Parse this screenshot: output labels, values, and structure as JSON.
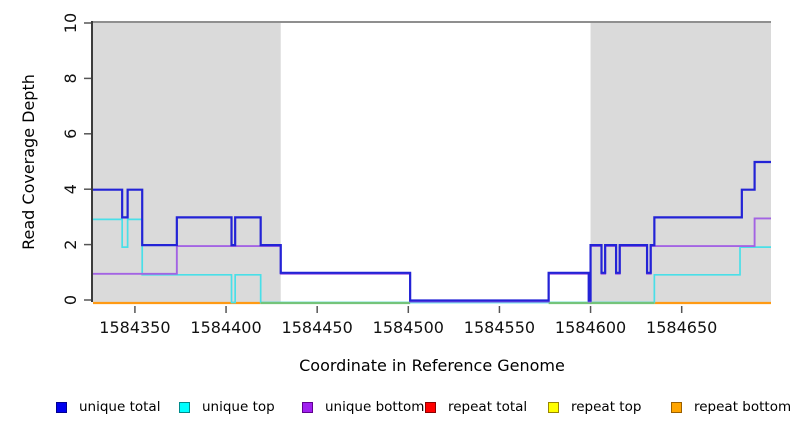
{
  "chart_data": {
    "type": "step-line",
    "title": "",
    "xlabel": "Coordinate in Reference Genome",
    "ylabel": "Read Coverage Depth",
    "xlim": [
      1584327,
      1584699
    ],
    "ylim": [
      0,
      10
    ],
    "x_ticks": [
      1584350,
      1584400,
      1584450,
      1584500,
      1584550,
      1584600,
      1584650
    ],
    "y_ticks": [
      0,
      2,
      4,
      6,
      8,
      10
    ],
    "grid": false,
    "legend_position": "bottom",
    "background_color": "#ffffff",
    "region_color": "#dadada",
    "shaded_regions": [
      {
        "from": 1584327,
        "to": 1584430
      },
      {
        "from": 1584600,
        "to": 1584699
      }
    ],
    "depth_cap_line": {
      "value": 10,
      "color": "#8f8f8f"
    },
    "series": [
      {
        "name": "unique total",
        "color": "#2323d6",
        "steps": [
          [
            1584327,
            4
          ],
          [
            1584343,
            3
          ],
          [
            1584346,
            4
          ],
          [
            1584354,
            2
          ],
          [
            1584373,
            3
          ],
          [
            1584403,
            2
          ],
          [
            1584405,
            3
          ],
          [
            1584419,
            2
          ],
          [
            1584430,
            1
          ],
          [
            1584501,
            0
          ],
          [
            1584577,
            1
          ],
          [
            1584599,
            0
          ],
          [
            1584600,
            2
          ],
          [
            1584606,
            1
          ],
          [
            1584608,
            2
          ],
          [
            1584614,
            1
          ],
          [
            1584616,
            2
          ],
          [
            1584631,
            1
          ],
          [
            1584633,
            2
          ],
          [
            1584635,
            3
          ],
          [
            1584683,
            4
          ],
          [
            1584690,
            5
          ]
        ]
      },
      {
        "name": "unique top",
        "color": "#49dfe8",
        "steps": [
          [
            1584327,
            3
          ],
          [
            1584343,
            2
          ],
          [
            1584346,
            3
          ],
          [
            1584354,
            1
          ],
          [
            1584403,
            0
          ],
          [
            1584405,
            1
          ],
          [
            1584419,
            0
          ],
          [
            1584635,
            1
          ],
          [
            1584682,
            2
          ]
        ]
      },
      {
        "name": "unique bottom",
        "color": "#a363e3",
        "steps": [
          [
            1584327,
            1
          ],
          [
            1584373,
            2
          ],
          [
            1584430,
            1
          ],
          [
            1584501,
            0
          ],
          [
            1584577,
            1
          ],
          [
            1584599,
            0
          ],
          [
            1584600,
            2
          ],
          [
            1584606,
            1
          ],
          [
            1584608,
            2
          ],
          [
            1584614,
            1
          ],
          [
            1584616,
            2
          ],
          [
            1584631,
            1
          ],
          [
            1584633,
            2
          ],
          [
            1584690,
            3
          ]
        ]
      },
      {
        "name": "repeat total",
        "color": "#e03030",
        "steps": [
          [
            1584327,
            0
          ]
        ]
      },
      {
        "name": "repeat top",
        "color": "#e8e83a",
        "steps": [
          [
            1584327,
            0
          ]
        ]
      },
      {
        "name": "repeat bottom",
        "color": "#ff9a14",
        "steps": [
          [
            1584327,
            0
          ]
        ]
      }
    ],
    "zero_line": {
      "orange_segments": [
        [
          1584327,
          1584419
        ],
        [
          1584635,
          1584699
        ]
      ],
      "blend_segments": [
        [
          1584419,
          1584501
        ],
        [
          1584577,
          1584635
        ]
      ],
      "blend_color": "#74c47a"
    }
  },
  "legend": {
    "items": [
      {
        "label": "unique total",
        "color": "#0000ee",
        "border": "#000090"
      },
      {
        "label": "unique top",
        "color": "#00ffff",
        "border": "#008b8b"
      },
      {
        "label": "unique bottom",
        "color": "#a020f0",
        "border": "#600090"
      },
      {
        "label": "repeat total",
        "color": "#ff0000",
        "border": "#8b0000"
      },
      {
        "label": "repeat top",
        "color": "#ffff00",
        "border": "#9a8700"
      },
      {
        "label": "repeat bottom",
        "color": "#ffa500",
        "border": "#9a5f00"
      }
    ]
  }
}
